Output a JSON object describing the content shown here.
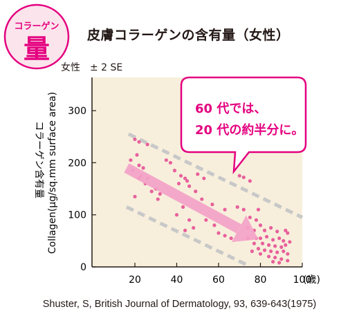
{
  "badge": {
    "line1": "コラーゲン",
    "line2": "量",
    "color": "#e4007f",
    "fill": "#fce4ec"
  },
  "header": {
    "title": "皮膚コラーゲンの含有量（女性）",
    "subtitle": "女性　± 2 SE"
  },
  "callout": {
    "line1": "60 代では、",
    "line2": "20 代の約半分に。",
    "color": "#e4007f"
  },
  "source": "Shuster, S, British Journal of Dermatology, 93, 639-643(1975)",
  "chart_data": {
    "type": "scatter",
    "xlabel": "(歳)",
    "ylabel_ja": "コラーゲン含有量",
    "ylabel_en": "Collagen(μg/sq.mm surface area)",
    "xlim": [
      0,
      100
    ],
    "ylim": [
      0,
      350
    ],
    "x_ticks": [
      20,
      40,
      60,
      80,
      100
    ],
    "y_ticks": [
      0,
      100,
      200,
      300
    ],
    "point_color": "#e8609b",
    "plot_bg": "#f7efdc",
    "points": [
      [
        20,
        245
      ],
      [
        22,
        240
      ],
      [
        26,
        235
      ],
      [
        21,
        215
      ],
      [
        18,
        205
      ],
      [
        22,
        195
      ],
      [
        24,
        190
      ],
      [
        19,
        185
      ],
      [
        23,
        175
      ],
      [
        26,
        170
      ],
      [
        22,
        170
      ],
      [
        25,
        160
      ],
      [
        30,
        150
      ],
      [
        28,
        145
      ],
      [
        32,
        140
      ],
      [
        20,
        135
      ],
      [
        31,
        130
      ],
      [
        35,
        205
      ],
      [
        37,
        200
      ],
      [
        39,
        185
      ],
      [
        42,
        175
      ],
      [
        44,
        170
      ],
      [
        41,
        160
      ],
      [
        45,
        165
      ],
      [
        50,
        178
      ],
      [
        53,
        170
      ],
      [
        46,
        155
      ],
      [
        49,
        145
      ],
      [
        52,
        130
      ],
      [
        57,
        120
      ],
      [
        43,
        115
      ],
      [
        40,
        100
      ],
      [
        46,
        90
      ],
      [
        54,
        90
      ],
      [
        48,
        75
      ],
      [
        44,
        70
      ],
      [
        58,
        80
      ],
      [
        60,
        65
      ],
      [
        63,
        60
      ],
      [
        66,
        55
      ],
      [
        70,
        175
      ],
      [
        72,
        172
      ],
      [
        75,
        165
      ],
      [
        69,
        115
      ],
      [
        72,
        110
      ],
      [
        75,
        95
      ],
      [
        79,
        110
      ],
      [
        78,
        90
      ],
      [
        80,
        80
      ],
      [
        74,
        75
      ],
      [
        77,
        70
      ],
      [
        82,
        70
      ],
      [
        85,
        75
      ],
      [
        88,
        68
      ],
      [
        92,
        70
      ],
      [
        93,
        65
      ],
      [
        78,
        55
      ],
      [
        80,
        55
      ],
      [
        83,
        58
      ],
      [
        86,
        52
      ],
      [
        89,
        55
      ],
      [
        91,
        50
      ],
      [
        94,
        48
      ],
      [
        81,
        45
      ],
      [
        84,
        42
      ],
      [
        87,
        40
      ],
      [
        90,
        38
      ],
      [
        92,
        42
      ],
      [
        79,
        35
      ],
      [
        82,
        32
      ],
      [
        85,
        30
      ],
      [
        88,
        28
      ],
      [
        91,
        30
      ],
      [
        93,
        25
      ],
      [
        80,
        25
      ],
      [
        84,
        20
      ],
      [
        87,
        18
      ],
      [
        90,
        15
      ],
      [
        93,
        12
      ],
      [
        86,
        10
      ],
      [
        89,
        8
      ],
      [
        76,
        30
      ],
      [
        77,
        45
      ],
      [
        74,
        55
      ],
      [
        63,
        110
      ]
    ],
    "bands": {
      "upper": [
        [
          17,
          255
        ],
        [
          100,
          95
        ]
      ],
      "lower": [
        [
          16,
          115
        ],
        [
          73,
          5
        ]
      ]
    },
    "trend": [
      [
        16,
        190
      ],
      [
        79,
        53
      ]
    ]
  }
}
